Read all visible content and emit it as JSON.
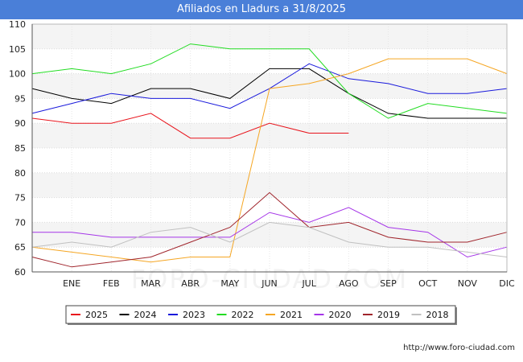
{
  "title": "Afiliados en Lladurs a 31/8/2025",
  "footer_url": "http://www.foro-ciudad.com",
  "watermark": "FORO-CIUDAD.COM",
  "chart_data": {
    "type": "line",
    "title": "Afiliados en Lladurs a 31/8/2025",
    "xlabel": "",
    "ylabel": "",
    "ylim": [
      60,
      110
    ],
    "yticks": [
      "60",
      "65",
      "70",
      "75",
      "80",
      "85",
      "90",
      "95",
      "100",
      "105",
      "110"
    ],
    "categories": [
      "",
      "ENE",
      "FEB",
      "MAR",
      "ABR",
      "MAY",
      "JUN",
      "JUL",
      "AGO",
      "SEP",
      "OCT",
      "NOV",
      "DIC"
    ],
    "legend_position": "bottom",
    "series": [
      {
        "name": "2025",
        "color": "#e8141c",
        "values": [
          91,
          90,
          90,
          92,
          87,
          87,
          90,
          88,
          88,
          null,
          null,
          null,
          null
        ]
      },
      {
        "name": "2024",
        "color": "#000000",
        "values": [
          97,
          95,
          94,
          97,
          97,
          95,
          101,
          101,
          96,
          92,
          91,
          91,
          91
        ]
      },
      {
        "name": "2023",
        "color": "#1a1adc",
        "values": [
          92,
          94,
          96,
          95,
          95,
          93,
          97,
          102,
          99,
          98,
          96,
          96,
          97
        ]
      },
      {
        "name": "2022",
        "color": "#22dc22",
        "values": [
          100,
          101,
          100,
          102,
          106,
          105,
          105,
          105,
          96,
          91,
          94,
          93,
          92
        ]
      },
      {
        "name": "2021",
        "color": "#f5a623",
        "values": [
          65,
          64,
          63,
          62,
          63,
          63,
          97,
          98,
          100,
          103,
          103,
          103,
          100
        ]
      },
      {
        "name": "2020",
        "color": "#a535e8",
        "values": [
          68,
          68,
          67,
          67,
          67,
          67,
          72,
          70,
          73,
          69,
          68,
          63,
          65
        ]
      },
      {
        "name": "2019",
        "color": "#a0252c",
        "values": [
          63,
          61,
          62,
          63,
          66,
          69,
          76,
          69,
          70,
          67,
          66,
          66,
          68
        ]
      },
      {
        "name": "2018",
        "color": "#c0c0c0",
        "values": [
          65,
          66,
          65,
          68,
          69,
          66,
          70,
          69,
          66,
          65,
          65,
          64,
          63
        ]
      }
    ]
  }
}
